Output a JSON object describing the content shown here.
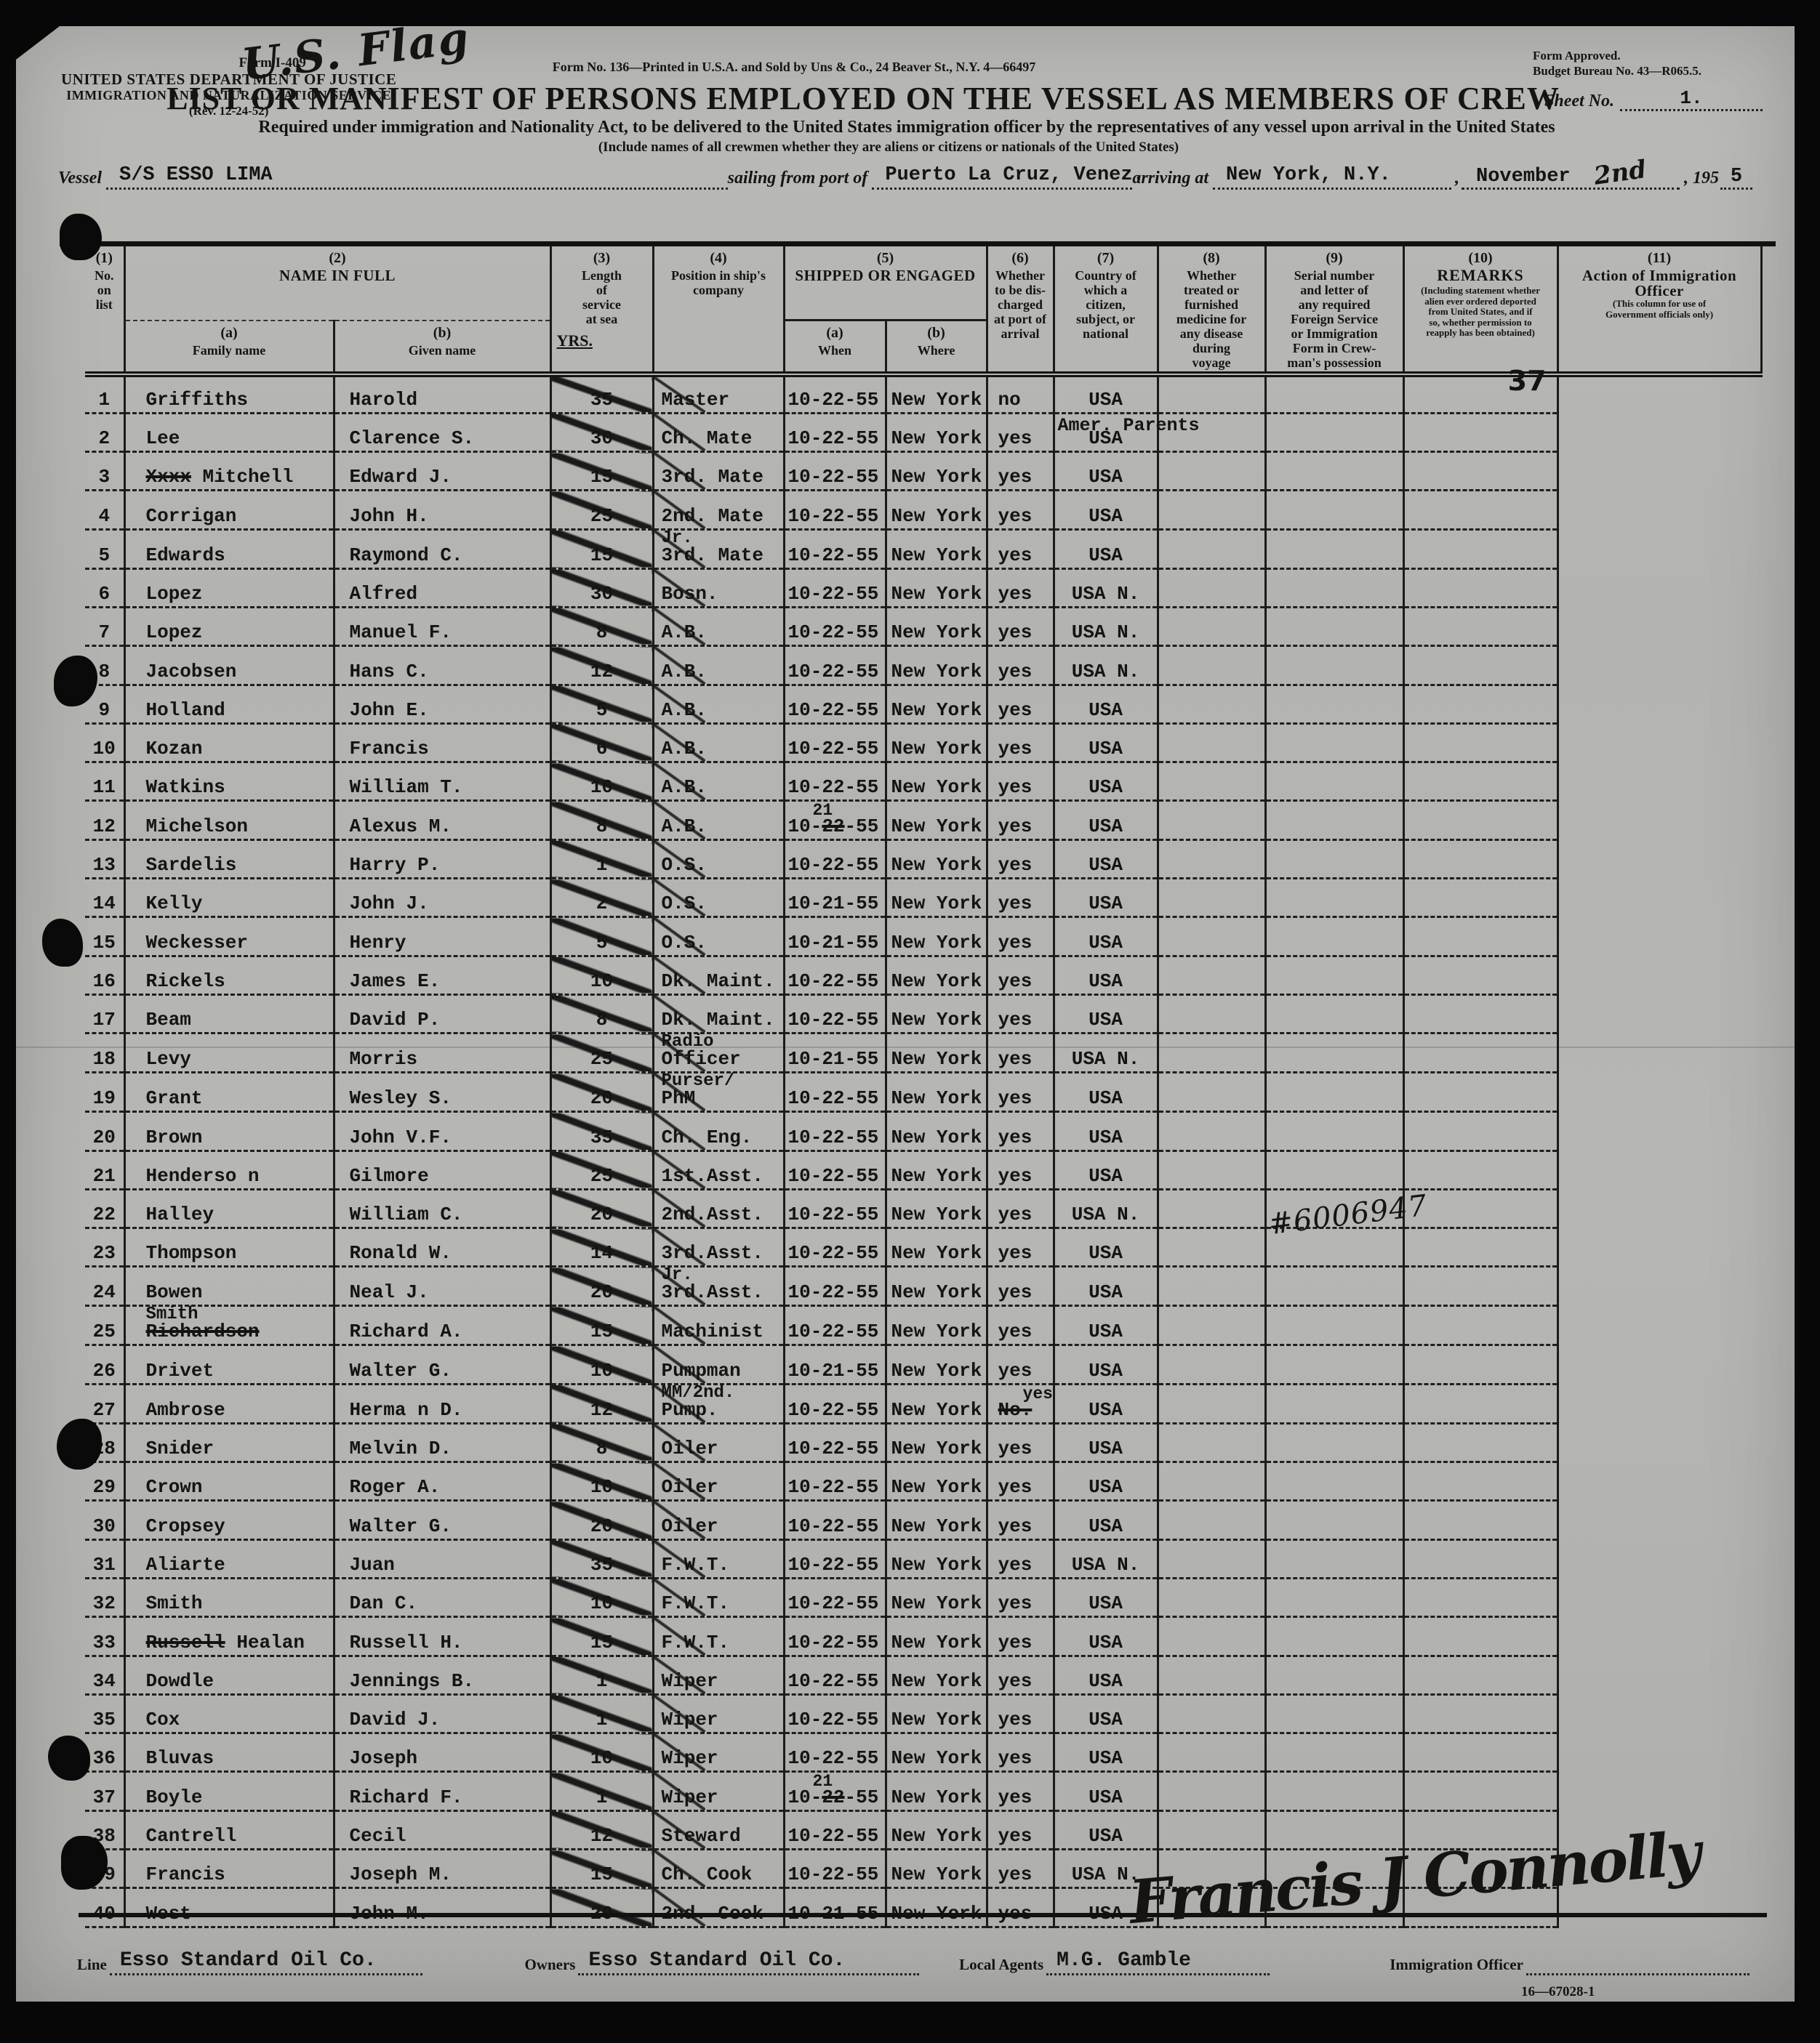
{
  "header": {
    "handwritten_flag": "U.S. Flag",
    "form_left_1": "Form I-409",
    "form_left_2": "UNITED STATES DEPARTMENT OF JUSTICE",
    "form_left_3": "IMMIGRATION AND NATURALIZATION SERVICE",
    "form_left_4": "(Rev. 12-24-52)",
    "form_center": "Form No. 136—Printed in U.S.A. and Sold by Uns & Co., 24 Beaver St., N.Y. 4—66497",
    "form_right_1": "Form Approved.",
    "form_right_2": "Budget Bureau No. 43—R065.5.",
    "title": "LIST OR MANIFEST OF PERSONS EMPLOYED ON THE VESSEL AS MEMBERS OF CREW",
    "sheet_label": "Sheet No.",
    "sheet_value": "1.",
    "subtitle": "Required under immigration and Nationality Act, to be delivered to the United States immigration officer by the representatives of any vessel upon arrival in the United States",
    "subtitle2": "(Include names of all crewmen whether they are aliens or citizens or nationals of the United States)",
    "vessel_label": "Vessel",
    "vessel_value": "S/S ESSO LIMA",
    "sailing_label": "sailing from port of",
    "sailing_value": "Puerto La Cruz, Venez.",
    "arriving_label": "arriving at",
    "arriving_value": "New York, N.Y.",
    "date_month": "November",
    "date_day": "2nd",
    "date_year_printed": ", 195",
    "date_year_written": "5"
  },
  "columns": {
    "c1_num": "(1)",
    "c1": "No.\non\nlist",
    "c2_num": "(2)",
    "c2": "NAME IN FULL",
    "c2a_num": "(a)",
    "c2a": "Family name",
    "c2b_num": "(b)",
    "c2b": "Given name",
    "c3_num": "(3)",
    "c3": "Length\nof\nservice\nat sea",
    "c3_unit": "YRS.",
    "c4_num": "(4)",
    "c4": "Position in ship's\ncompany",
    "c5_num": "(5)",
    "c5": "SHIPPED OR ENGAGED",
    "c5a_num": "(a)",
    "c5a": "When",
    "c5b_num": "(b)",
    "c5b": "Where",
    "c6_num": "(6)",
    "c6": "Whether\nto be dis-\ncharged\nat port of\narrival",
    "c7_num": "(7)",
    "c7": "Country of\nwhich a\ncitizen,\nsubject, or\nnational",
    "c8_num": "(8)",
    "c8": "Whether\ntreated or\nfurnished\nmedicine for\nany disease\nduring\nvoyage",
    "c9_num": "(9)",
    "c9": "Serial number\nand letter of\nany required\nForeign Service\nor Immigration\nForm in Crew-\nman's possession",
    "c10_num": "(10)",
    "c10": "REMARKS",
    "c10_small": "(Including statement whether\nalien ever ordered deported\nfrom United States, and if\nso, whether permission to\nreapply has been obtained)",
    "c11_num": "(11)",
    "c11": "Action of Immigration\nOfficer",
    "c11_small": "(This column for use of\nGovernment officials only)"
  },
  "crew": {
    "rows": [
      {
        "no": "1",
        "family": "Griffiths",
        "given": "Harold",
        "years": "35",
        "position": "Master",
        "when": "10-22-55",
        "where": "New York",
        "discharge": "no",
        "country": "USA",
        "country_note": "Amer. Parents",
        "serial": "",
        "remark": "",
        "action_hand": "37"
      },
      {
        "no": "2",
        "family": "Lee",
        "given": "Clarence S.",
        "years": "30",
        "position": "Ch. Mate",
        "when": "10-22-55",
        "where": "New York",
        "discharge": "yes",
        "country": "USA"
      },
      {
        "no": "3",
        "family_struck": "Xxxx",
        "family": "Mitchell",
        "given": "Edward J.",
        "years": "15",
        "position": "3rd. Mate",
        "when": "10-22-55",
        "where": "New York",
        "discharge": "yes",
        "country": "USA"
      },
      {
        "no": "4",
        "family": "Corrigan",
        "given": "John H.",
        "years": "25",
        "position": "2nd. Mate",
        "when": "10-22-55",
        "where": "New York",
        "discharge": "yes",
        "country": "USA"
      },
      {
        "no": "5",
        "family": "Edwards",
        "given": "Raymond C.",
        "years": "15",
        "position_super": "Jr.",
        "position": "3rd. Mate",
        "when": "10-22-55",
        "where": "New York",
        "discharge": "yes",
        "country": "USA"
      },
      {
        "no": "6",
        "family": "Lopez",
        "given": "Alfred",
        "years": "30",
        "position": "Bosn.",
        "when": "10-22-55",
        "where": "New York",
        "discharge": "yes",
        "country": "USA N."
      },
      {
        "no": "7",
        "family": "Lopez",
        "given": "Manuel F.",
        "years": "8",
        "position": "A.B.",
        "when": "10-22-55",
        "where": "New York",
        "discharge": "yes",
        "country": "USA N."
      },
      {
        "no": "8",
        "family": "Jacobsen",
        "given": "Hans C.",
        "years": "12",
        "position": "A.B.",
        "when": "10-22-55",
        "where": "New York",
        "discharge": "yes",
        "country": "USA N."
      },
      {
        "no": "9",
        "family": "Holland",
        "given": "John E.",
        "years": "5",
        "position": "A.B.",
        "when": "10-22-55",
        "where": "New York",
        "discharge": "yes",
        "country": "USA"
      },
      {
        "no": "10",
        "family": "Kozan",
        "given": "Francis",
        "years": "6",
        "position": "A.B.",
        "when": "10-22-55",
        "where": "New York",
        "discharge": "yes",
        "country": "USA"
      },
      {
        "no": "11",
        "family": "Watkins",
        "given": "William T.",
        "years": "10",
        "position": "A.B.",
        "when": "10-22-55",
        "where": "New York",
        "discharge": "yes",
        "country": "USA"
      },
      {
        "no": "12",
        "family": "Michelson",
        "given": "Alexus M.",
        "years": "8",
        "position": "A.B.",
        "when_parts": {
          "prefix": "10-",
          "struck": "22",
          "suffix": "-55",
          "above": "21"
        },
        "where": "New York",
        "discharge": "yes",
        "country": "USA"
      },
      {
        "no": "13",
        "family": "Sardelis",
        "given": "Harry P.",
        "years": "1",
        "position": "O.S.",
        "when": "10-22-55",
        "where": "New York",
        "discharge": "yes",
        "country": "USA"
      },
      {
        "no": "14",
        "family": "Kelly",
        "given": "John J.",
        "years": "2",
        "position": "O.S.",
        "when": "10-21-55",
        "where": "New York",
        "discharge": "yes",
        "country": "USA"
      },
      {
        "no": "15",
        "family": "Weckesser",
        "given": "Henry",
        "years": "5",
        "position": "O.S.",
        "when": "10-21-55",
        "where": "New York",
        "discharge": "yes",
        "country": "USA"
      },
      {
        "no": "16",
        "family": "Rickels",
        "given": "James E.",
        "years": "10",
        "position": "Dk. Maint.",
        "when": "10-22-55",
        "where": "New York",
        "discharge": "yes",
        "country": "USA"
      },
      {
        "no": "17",
        "family": "Beam",
        "given": "David P.",
        "years": "8",
        "position": "Dk. Maint.",
        "when": "10-22-55",
        "where": "New York",
        "discharge": "yes",
        "country": "USA"
      },
      {
        "no": "18",
        "family": "Levy",
        "given": "Morris",
        "years": "25",
        "position_super": "Radio",
        "position": "Officer",
        "when": "10-21-55",
        "where": "New York",
        "discharge": "yes",
        "country": "USA N."
      },
      {
        "no": "19",
        "family": "Grant",
        "given": "Wesley S.",
        "years": "20",
        "position_super": "Purser/",
        "position": "PhM",
        "when": "10-22-55",
        "where": "New York",
        "discharge": "yes",
        "country": "USA"
      },
      {
        "no": "20",
        "family": "Brown",
        "given": "John V.F.",
        "years": "35",
        "position": "Ch. Eng.",
        "when": "10-22-55",
        "where": "New York",
        "discharge": "yes",
        "country": "USA"
      },
      {
        "no": "21",
        "family": "Henderso n",
        "given": "Gilmore",
        "years": "25",
        "position": "1st.Asst.",
        "when": "10-22-55",
        "where": "New York",
        "discharge": "yes",
        "country": "USA"
      },
      {
        "no": "22",
        "family": "Halley",
        "given": "William C.",
        "years": "20",
        "position": "2nd.Asst.",
        "when": "10-22-55",
        "where": "New York",
        "discharge": "yes",
        "country": "USA N.",
        "remark_hand": "#6006947"
      },
      {
        "no": "23",
        "family": "Thompson",
        "given": "Ronald W.",
        "years": "14",
        "position": "3rd.Asst.",
        "when": "10-22-55",
        "where": "New York",
        "discharge": "yes",
        "country": "USA"
      },
      {
        "no": "24",
        "family": "Bowen",
        "given": "Neal J.",
        "years": "20",
        "position_super": "Jr.",
        "position": "3rd.Asst.",
        "when": "10-22-55",
        "where": "New York",
        "discharge": "yes",
        "country": "USA"
      },
      {
        "no": "25",
        "family_correction": "Smith",
        "family_struck": "Richardson",
        "family": "",
        "given": "Richard A.",
        "years": "15",
        "position": "Machinist",
        "when": "10-22-55",
        "where": "New York",
        "discharge": "yes",
        "country": "USA"
      },
      {
        "no": "26",
        "family": "Drivet",
        "given": "Walter G.",
        "years": "10",
        "position": "Pumpman",
        "when": "10-21-55",
        "where": "New York",
        "discharge": "yes",
        "country": "USA"
      },
      {
        "no": "27",
        "family": "Ambrose",
        "given": "Herma n D.",
        "years": "12",
        "position_super": "MM/2nd.",
        "position": "Pump.",
        "when": "10-22-55",
        "where": "New York",
        "discharge_above": "yes",
        "discharge_struck": "No.",
        "country": "USA"
      },
      {
        "no": "28",
        "family": "Snider",
        "given": "Melvin D.",
        "years": "8",
        "position": "Oiler",
        "when": "10-22-55",
        "where": "New York",
        "discharge": "yes",
        "country": "USA"
      },
      {
        "no": "29",
        "family": "Crown",
        "given": "Roger A.",
        "years": "10",
        "position": "Oiler",
        "when": "10-22-55",
        "where": "New York",
        "discharge": "yes",
        "country": "USA"
      },
      {
        "no": "30",
        "family": "Cropsey",
        "given": "Walter G.",
        "years": "20",
        "position": "Oiler",
        "when": "10-22-55",
        "where": "New York",
        "discharge": "yes",
        "country": "USA"
      },
      {
        "no": "31",
        "family": "Aliarte",
        "given": "Juan",
        "years": "35",
        "position": "F.W.T.",
        "when": "10-22-55",
        "where": "New York",
        "discharge": "yes",
        "country": "USA N."
      },
      {
        "no": "32",
        "family": "Smith",
        "given": "Dan C.",
        "years": "10",
        "position": "F.W.T.",
        "when": "10-22-55",
        "where": "New York",
        "discharge": "yes",
        "country": "USA"
      },
      {
        "no": "33",
        "family_struck": "Russell",
        "family": "Healan",
        "given": "Russell H.",
        "years": "15",
        "position": "F.W.T.",
        "when": "10-22-55",
        "where": "New York",
        "discharge": "yes",
        "country": "USA"
      },
      {
        "no": "34",
        "family": "Dowdle",
        "given": "Jennings B.",
        "years": "1",
        "position": "Wiper",
        "when": "10-22-55",
        "where": "New York",
        "discharge": "yes",
        "country": "USA"
      },
      {
        "no": "35",
        "family": "Cox",
        "given": "David J.",
        "years": "1",
        "position": "Wiper",
        "when": "10-22-55",
        "where": "New York",
        "discharge": "yes",
        "country": "USA"
      },
      {
        "no": "36",
        "family": "Bluvas",
        "given": "Joseph",
        "years": "10",
        "position": "Wiper",
        "when": "10-22-55",
        "where": "New York",
        "discharge": "yes",
        "country": "USA"
      },
      {
        "no": "37",
        "family": "Boyle",
        "given": "Richard F.",
        "years": "1",
        "position": "Wiper",
        "when_parts": {
          "prefix": "10-",
          "struck": "22",
          "suffix": "-55",
          "above": "21"
        },
        "where": "New York",
        "discharge": "yes",
        "country": "USA"
      },
      {
        "no": "38",
        "family": "Cantrell",
        "given": "Cecil",
        "years": "12",
        "position": "Steward",
        "when": "10-22-55",
        "where": "New York",
        "discharge": "yes",
        "country": "USA"
      },
      {
        "no": "39",
        "family": "Francis",
        "given": "Joseph M.",
        "years": "15",
        "position": "Ch. Cook",
        "when": "10-22-55",
        "where": "New York",
        "discharge": "yes",
        "country": "USA N."
      },
      {
        "no": "40",
        "family": "West",
        "given": "John M.",
        "years": "20",
        "position": "2nd. Cook",
        "when": "10-21-55",
        "where": "New York",
        "discharge": "yes",
        "country": "USA"
      }
    ]
  },
  "footer": {
    "line_label": "Line",
    "line_value": "Esso Standard Oil Co.",
    "owners_label": "Owners",
    "owners_value": "Esso Standard Oil Co.",
    "agents_label": "Local Agents",
    "agents_value": "M.G. Gamble",
    "officer_label": "Immigration Officer",
    "officer_signature": "Francis J Connolly",
    "print_code": "16—67028-1"
  }
}
